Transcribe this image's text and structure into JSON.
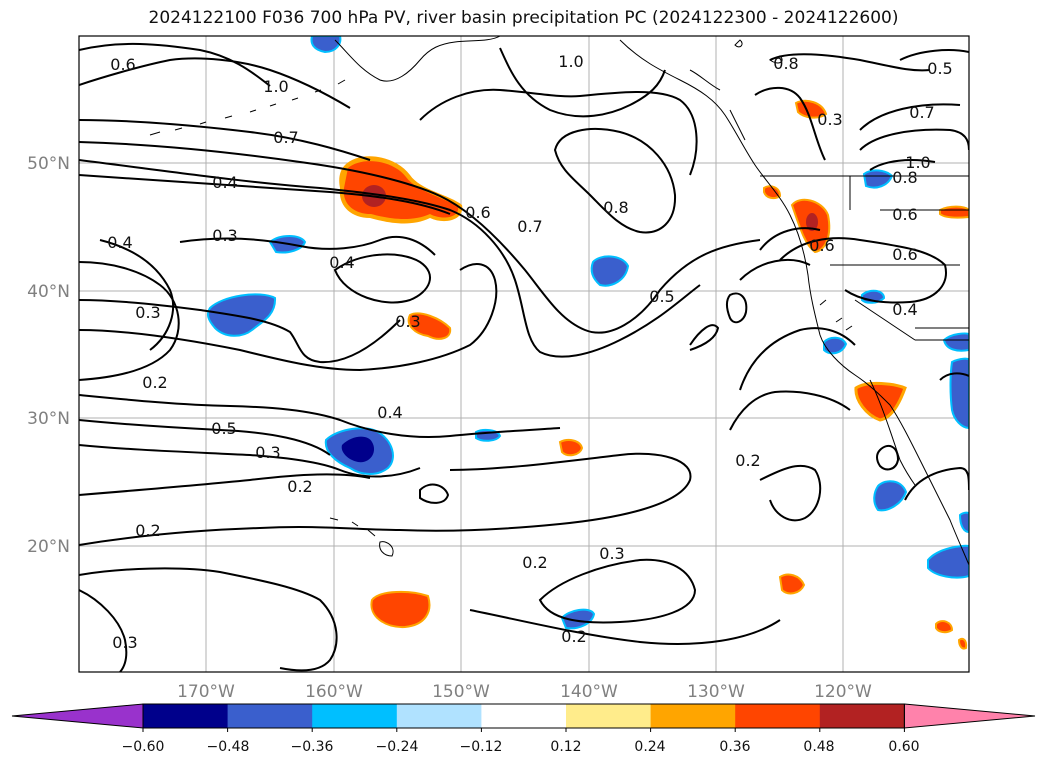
{
  "title": "2024122100 F036 700 hPa PV, river basin precipitation PC (2024122300 - 2024122600)",
  "map": {
    "lat_labels": [
      "50°N",
      "40°N",
      "30°N",
      "20°N"
    ],
    "lon_labels": [
      "170°W",
      "160°W",
      "150°W",
      "140°W",
      "130°W",
      "120°W"
    ],
    "contour_labels": [
      "0.6",
      "1.0",
      "0.7",
      "0.4",
      "0.3",
      "0.4",
      "0.3",
      "0.2",
      "0.5",
      "0.3",
      "0.2",
      "0.4",
      "0.2",
      "0.3",
      "0.6",
      "0.7",
      "0.8",
      "1.0",
      "0.8",
      "0.5",
      "0.5",
      "0.7",
      "1.0",
      "0.8",
      "0.6",
      "0.6",
      "0.4",
      "0.6",
      "0.2",
      "0.2",
      "0.3",
      "0.4",
      "0.2",
      "0.3",
      "0.3"
    ],
    "colors": {
      "neg_strong": "#00008b",
      "neg_mid": "#3a5fcd",
      "neg_light": "#00bfff",
      "pos_light": "#ffa500",
      "pos_mid": "#ff4500",
      "pos_strong": "#b22222"
    }
  },
  "colorbar": {
    "colors": [
      "#9932cc",
      "#00008b",
      "#3a5fcd",
      "#00bfff",
      "#b0e2ff",
      "#ffffff",
      "#ffec8b",
      "#ffa500",
      "#ff4500",
      "#b22222",
      "#ff82ab"
    ],
    "tick_labels": [
      "−0.60",
      "−0.48",
      "−0.36",
      "−0.24",
      "−0.12",
      "0.12",
      "0.24",
      "0.36",
      "0.48",
      "0.60"
    ]
  }
}
